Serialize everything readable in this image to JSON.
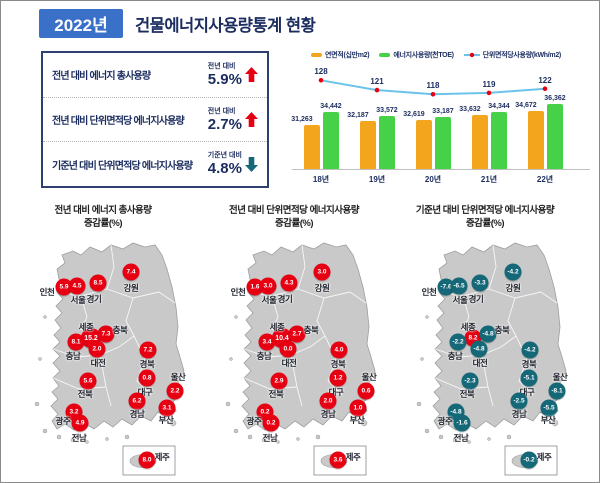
{
  "header": {
    "year_badge": "2022년",
    "title": "건물에너지사용량통계 현황"
  },
  "stats": {
    "items": [
      {
        "label": "전년 대비 에너지 총사용량",
        "basis": "전년 대비",
        "value": "5.9%",
        "direction": "up"
      },
      {
        "label": "전년 대비 단위면적당 에너지사용량",
        "basis": "전년 대비",
        "value": "2.7%",
        "direction": "up"
      },
      {
        "label": "기준년 대비 단위면적당 에너지사용량",
        "basis": "기준년 대비",
        "value": "4.8%",
        "direction": "down"
      }
    ]
  },
  "chart_data": {
    "type": "bar+line",
    "categories": [
      "18년",
      "19년",
      "20년",
      "21년",
      "22년"
    ],
    "series": [
      {
        "name": "연면적(십만m2)",
        "type": "bar",
        "color": "#f3a61d",
        "values": [
          31263,
          32187,
          32619,
          33632,
          34672
        ]
      },
      {
        "name": "에너지사용량(천TOE)",
        "type": "bar",
        "color": "#46d149",
        "values": [
          34442,
          33572,
          33187,
          34344,
          36362
        ]
      },
      {
        "name": "단위면적당사용량(kWh/m2)",
        "type": "line",
        "color": "#6cc3ea",
        "marker_color": "#e60012",
        "values": [
          128,
          121,
          118,
          119,
          122
        ]
      }
    ],
    "legend_position": "top",
    "ylim_bars": [
      21000,
      38000
    ],
    "ylim_line": [
      110,
      135
    ],
    "grid": false
  },
  "maps": {
    "regions": [
      "인천",
      "서울",
      "경기",
      "강원",
      "세종",
      "충북",
      "충남",
      "대전",
      "전북",
      "경북",
      "대구",
      "울산",
      "경남",
      "부산",
      "광주",
      "전남",
      "제주"
    ],
    "bubble_colors": {
      "positive": "#e60012",
      "negative": "#156878"
    },
    "panels": [
      {
        "title1": "전년 대비 에너지 총사용량",
        "title2": "증감률(%)",
        "values": {
          "인천": "5.9",
          "서울": "4.5",
          "경기": "8.5",
          "강원": "7.4",
          "세종": "15.2",
          "충북": "7.3",
          "충남": "8.1",
          "대전": "2.0",
          "전북": "5.6",
          "경북": "7.2",
          "대구": "0.8",
          "울산": "2.2",
          "경남": "6.2",
          "부산": "3.1",
          "광주": "3.2",
          "전남": "4.9",
          "제주": "8.0"
        }
      },
      {
        "title1": "전년 대비 단위면적당 에너지사용량",
        "title2": "증감률(%)",
        "values": {
          "인천": "1.6",
          "서울": "3.0",
          "경기": "4.3",
          "강원": "3.0",
          "세종": "10.4",
          "충북": "2.7",
          "충남": "3.4",
          "대전": "0.0",
          "전북": "2.9",
          "경북": "4.0",
          "대구": "1.2",
          "울산": "0.6",
          "경남": "2.0",
          "부산": "1.0",
          "광주": "0.2",
          "전남": "0.2",
          "제주": "3.6"
        }
      },
      {
        "title1": "기준년 대비 단위면적당 에너지사용량",
        "title2": "증감률(%)",
        "values": {
          "인천": "-7.6",
          "서울": "-6.5",
          "경기": "-3.3",
          "강원": "-4.2",
          "세종": "8.2",
          "충북": "-4.8",
          "충남": "-2.2",
          "대전": "-4.8",
          "전북": "-2.3",
          "경북": "-4.2",
          "대구": "-5.1",
          "울산": "-8.1",
          "경남": "-2.5",
          "부산": "-5.5",
          "광주": "-4.8",
          "전남": "-1.6",
          "제주": "-0.2"
        }
      }
    ]
  },
  "colors": {
    "navy": "#1b2c5f",
    "badge_blue": "#3a70c8",
    "panel_border": "#2e3f70",
    "up_red": "#e60012",
    "down_teal": "#156878",
    "map_gray": "#c9c9c9"
  }
}
